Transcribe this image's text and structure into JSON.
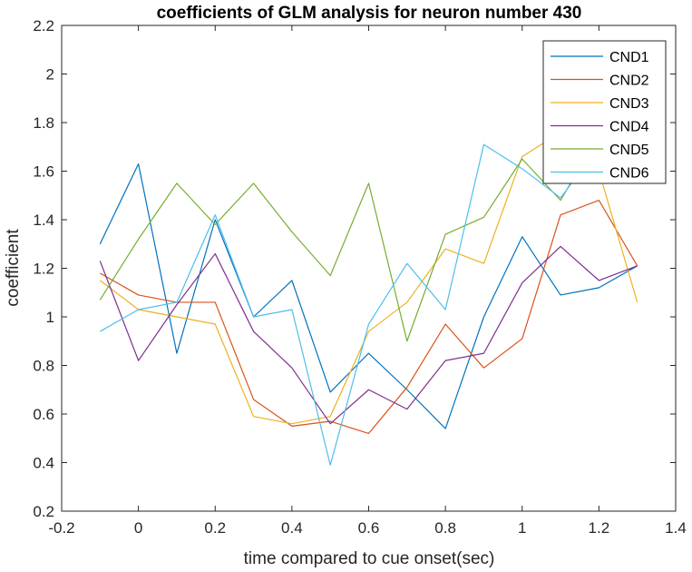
{
  "chart_data": {
    "type": "line",
    "title": "coefficients of GLM analysis for neuron number 430",
    "xlabel": "time compared to cue onset(sec)",
    "ylabel": "coefficient",
    "xlim": [
      -0.2,
      1.4
    ],
    "ylim": [
      0.2,
      2.2
    ],
    "xticks": [
      "-0.2",
      "0",
      "0.2",
      "0.4",
      "0.6",
      "0.8",
      "1",
      "1.2",
      "1.4"
    ],
    "yticks": [
      "0.2",
      "0.4",
      "0.6",
      "0.8",
      "1",
      "1.2",
      "1.4",
      "1.6",
      "1.8",
      "2",
      "2.2"
    ],
    "grid": false,
    "legend_position": "top-right",
    "x": [
      -0.1,
      0,
      0.1,
      0.2,
      0.3,
      0.4,
      0.5,
      0.6,
      0.7,
      0.8,
      0.9,
      1.0,
      1.1,
      1.2,
      1.3
    ],
    "series": [
      {
        "name": "CND1",
        "color": "#0072BD",
        "values": [
          1.3,
          1.63,
          0.85,
          1.4,
          1.0,
          1.15,
          0.69,
          0.85,
          0.7,
          0.54,
          1.0,
          1.33,
          1.09,
          1.12,
          1.21
        ]
      },
      {
        "name": "CND2",
        "color": "#D95319",
        "values": [
          1.18,
          1.09,
          1.06,
          1.06,
          0.66,
          0.55,
          0.57,
          0.52,
          0.71,
          0.97,
          0.79,
          0.91,
          1.42,
          1.48,
          1.21
        ]
      },
      {
        "name": "CND3",
        "color": "#EDB120",
        "values": [
          1.15,
          1.03,
          1.0,
          0.97,
          0.59,
          0.56,
          0.59,
          0.94,
          1.06,
          1.28,
          1.22,
          1.66,
          1.76,
          1.6,
          1.06
        ]
      },
      {
        "name": "CND4",
        "color": "#7E2F8E",
        "values": [
          1.23,
          0.82,
          1.05,
          1.26,
          0.94,
          0.79,
          0.56,
          0.7,
          0.62,
          0.82,
          0.85,
          1.14,
          1.29,
          1.15,
          1.21
        ]
      },
      {
        "name": "CND5",
        "color": "#77AC30",
        "values": [
          1.07,
          1.32,
          1.55,
          1.38,
          1.55,
          1.35,
          1.17,
          1.55,
          0.9,
          1.34,
          1.41,
          1.65,
          1.48,
          1.75,
          1.64
        ]
      },
      {
        "name": "CND6",
        "color": "#4DBEEE",
        "values": [
          0.94,
          1.03,
          1.06,
          1.42,
          1.0,
          1.03,
          0.39,
          0.97,
          1.22,
          1.03,
          1.71,
          1.61,
          1.49,
          1.7,
          1.71
        ]
      }
    ]
  }
}
